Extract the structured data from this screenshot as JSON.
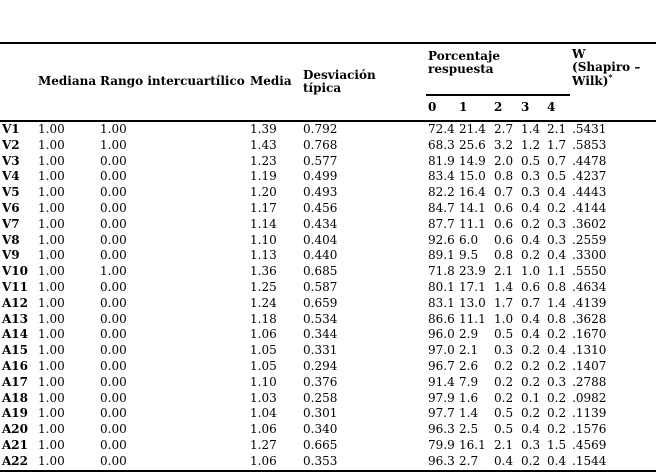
{
  "colors": {
    "text": "#000000",
    "background": "#ffffff",
    "rules": "#000000"
  },
  "table": {
    "headers": {
      "row_label": "",
      "mediana": "Mediana",
      "rango": "Rango intercuartílico",
      "media": "Media",
      "desviacion": "Desviación típica",
      "porcentaje": "Porcentaje respuesta",
      "sub": [
        "0",
        "1",
        "2",
        "3",
        "4"
      ],
      "w_line1": "W",
      "w_line2": "(Shapiro –",
      "w_line3": "Wilk)",
      "w_sup": "*"
    },
    "rows": [
      {
        "label": "V1",
        "mediana": "1.00",
        "rango": "1.00",
        "media": "1.39",
        "desviacion": "0.792",
        "p": [
          "72.4",
          "21.4",
          "2.7",
          "1.4",
          "2.1"
        ],
        "w": ".5431"
      },
      {
        "label": "V2",
        "mediana": "1.00",
        "rango": "1.00",
        "media": "1.43",
        "desviacion": "0.768",
        "p": [
          "68.3",
          "25.6",
          "3.2",
          "1.2",
          "1.7"
        ],
        "w": ".5853"
      },
      {
        "label": "V3",
        "mediana": "1.00",
        "rango": "0.00",
        "media": "1.23",
        "desviacion": "0.577",
        "p": [
          "81.9",
          "14.9",
          "2.0",
          "0.5",
          "0.7"
        ],
        "w": ".4478"
      },
      {
        "label": "V4",
        "mediana": "1.00",
        "rango": "0.00",
        "media": "1.19",
        "desviacion": "0.499",
        "p": [
          "83.4",
          "15.0",
          "0.8",
          "0.3",
          "0.5"
        ],
        "w": ".4237"
      },
      {
        "label": "V5",
        "mediana": "1.00",
        "rango": "0.00",
        "media": "1.20",
        "desviacion": "0.493",
        "p": [
          "82.2",
          "16.4",
          "0.7",
          "0.3",
          "0.4"
        ],
        "w": ".4443"
      },
      {
        "label": "V6",
        "mediana": "1.00",
        "rango": "0.00",
        "media": "1.17",
        "desviacion": "0.456",
        "p": [
          "84.7",
          "14.1",
          "0.6",
          "0.4",
          "0.2"
        ],
        "w": ".4144"
      },
      {
        "label": "V7",
        "mediana": "1.00",
        "rango": "0.00",
        "media": "1.14",
        "desviacion": "0.434",
        "p": [
          "87.7",
          "11.1",
          "0.6",
          "0.2",
          "0.3"
        ],
        "w": ".3602"
      },
      {
        "label": "V8",
        "mediana": "1.00",
        "rango": "0.00",
        "media": "1.10",
        "desviacion": "0.404",
        "p": [
          "92.6",
          "6.0",
          "0.6",
          "0.4",
          "0.3"
        ],
        "w": ".2559"
      },
      {
        "label": "V9",
        "mediana": "1.00",
        "rango": "0.00",
        "media": "1.13",
        "desviacion": "0.440",
        "p": [
          "89.1",
          "9.5",
          "0.8",
          "0.2",
          "0.4"
        ],
        "w": ".3300"
      },
      {
        "label": "V10",
        "mediana": "1.00",
        "rango": "1.00",
        "media": "1.36",
        "desviacion": "0.685",
        "p": [
          "71.8",
          "23.9",
          "2.1",
          "1.0",
          "1.1"
        ],
        "w": ".5550"
      },
      {
        "label": "V11",
        "mediana": "1.00",
        "rango": "0.00",
        "media": "1.25",
        "desviacion": "0.587",
        "p": [
          "80.1",
          "17.1",
          "1.4",
          "0.6",
          "0.8"
        ],
        "w": ".4634"
      },
      {
        "label": "A12",
        "mediana": "1.00",
        "rango": "0.00",
        "media": "1.24",
        "desviacion": "0.659",
        "p": [
          "83.1",
          "13.0",
          "1.7",
          "0.7",
          "1.4"
        ],
        "w": ".4139"
      },
      {
        "label": "A13",
        "mediana": "1.00",
        "rango": "0.00",
        "media": "1.18",
        "desviacion": "0.534",
        "p": [
          "86.6",
          "11.1",
          "1.0",
          "0.4",
          "0.8"
        ],
        "w": ".3628"
      },
      {
        "label": "A14",
        "mediana": "1.00",
        "rango": "0.00",
        "media": "1.06",
        "desviacion": "0.344",
        "p": [
          "96.0",
          "2.9",
          "0.5",
          "0.4",
          "0.2"
        ],
        "w": ".1670"
      },
      {
        "label": "A15",
        "mediana": "1.00",
        "rango": "0.00",
        "media": "1.05",
        "desviacion": "0.331",
        "p": [
          "97.0",
          "2.1",
          "0.3",
          "0.2",
          "0.4"
        ],
        "w": ".1310"
      },
      {
        "label": "A16",
        "mediana": "1.00",
        "rango": "0.00",
        "media": "1.05",
        "desviacion": "0.294",
        "p": [
          "96.7",
          "2.6",
          "0.2",
          "0.2",
          "0.2"
        ],
        "w": ".1407"
      },
      {
        "label": "A17",
        "mediana": "1.00",
        "rango": "0.00",
        "media": "1.10",
        "desviacion": "0.376",
        "p": [
          "91.4",
          "7.9",
          "0.2",
          "0.2",
          "0.3"
        ],
        "w": ".2788"
      },
      {
        "label": "A18",
        "mediana": "1.00",
        "rango": "0.00",
        "media": "1.03",
        "desviacion": "0.258",
        "p": [
          "97.9",
          "1.6",
          "0.2",
          "0.1",
          "0.2"
        ],
        "w": ".0982"
      },
      {
        "label": "A19",
        "mediana": "1.00",
        "rango": "0.00",
        "media": "1.04",
        "desviacion": "0.301",
        "p": [
          "97.7",
          "1.4",
          "0.5",
          "0.2",
          "0.2"
        ],
        "w": ".1139"
      },
      {
        "label": "A20",
        "mediana": "1.00",
        "rango": "0.00",
        "media": "1.06",
        "desviacion": "0.340",
        "p": [
          "96.3",
          "2.5",
          "0.5",
          "0.4",
          "0.2"
        ],
        "w": ".1576"
      },
      {
        "label": "A21",
        "mediana": "1.00",
        "rango": "0.00",
        "media": "1.27",
        "desviacion": "0.665",
        "p": [
          "79.9",
          "16.1",
          "2.1",
          "0.3",
          "1.5"
        ],
        "w": ".4569"
      },
      {
        "label": "A22",
        "mediana": "1.00",
        "rango": "0.00",
        "media": "1.06",
        "desviacion": "0.353",
        "p": [
          "96.3",
          "2.7",
          "0.4",
          "0.2",
          "0.4"
        ],
        "w": ".1544"
      }
    ]
  }
}
